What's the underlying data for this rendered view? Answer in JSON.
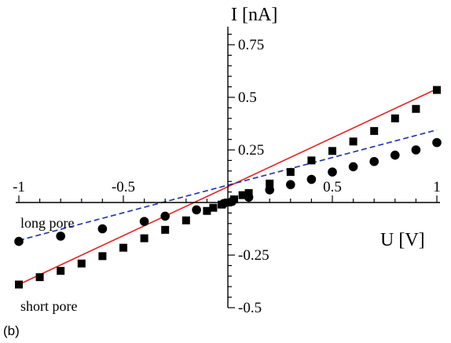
{
  "panel_label": "(b)",
  "chart_data": {
    "type": "scatter",
    "xlabel": "U [V]",
    "ylabel": "I [nA]",
    "xlim": [
      -1,
      1
    ],
    "ylim": [
      -0.5,
      0.85
    ],
    "x_ticks": [
      -1,
      -0.5,
      0.5,
      1
    ],
    "x_tick_labels": [
      "-1",
      "-0.5",
      "0.5",
      "1"
    ],
    "y_ticks": [
      0.75,
      0.5,
      0.25,
      -0.25,
      -0.5
    ],
    "y_tick_labels": [
      "0.75",
      "0.5",
      "0.25",
      "-0.25",
      "-0.5"
    ],
    "grid": false,
    "series": [
      {
        "name": "short pore",
        "marker": "square",
        "fit": "solid",
        "fit_color": "#e8201e",
        "fit_line": [
          [
            -1,
            -0.39
          ],
          [
            1,
            0.54
          ]
        ],
        "x": [
          -1.0,
          -0.9,
          -0.8,
          -0.7,
          -0.6,
          -0.5,
          -0.4,
          -0.3,
          -0.2,
          -0.1,
          -0.07,
          -0.03,
          0.0,
          0.03,
          0.07,
          0.1,
          0.2,
          0.3,
          0.4,
          0.5,
          0.6,
          0.7,
          0.8,
          0.9,
          1.0
        ],
        "y": [
          -0.39,
          -0.355,
          -0.325,
          -0.29,
          -0.255,
          -0.215,
          -0.17,
          -0.13,
          -0.085,
          -0.04,
          -0.025,
          -0.01,
          0.0,
          0.015,
          0.035,
          0.045,
          0.09,
          0.145,
          0.2,
          0.245,
          0.29,
          0.34,
          0.4,
          0.445,
          0.535
        ]
      },
      {
        "name": "long pore",
        "marker": "circle",
        "fit": "dashed",
        "fit_color": "#1c2fb0",
        "fit_line": [
          [
            -1,
            -0.18
          ],
          [
            1,
            0.345
          ]
        ],
        "x": [
          -1.0,
          -0.8,
          -0.6,
          -0.4,
          -0.3,
          -0.15,
          -0.02,
          0.02,
          0.1,
          0.2,
          0.3,
          0.4,
          0.5,
          0.6,
          0.7,
          0.8,
          0.9,
          1.0
        ],
        "y": [
          -0.185,
          -0.16,
          -0.125,
          -0.09,
          -0.065,
          -0.035,
          -0.005,
          0.005,
          0.025,
          0.06,
          0.085,
          0.11,
          0.145,
          0.17,
          0.195,
          0.225,
          0.25,
          0.285
        ]
      }
    ]
  }
}
